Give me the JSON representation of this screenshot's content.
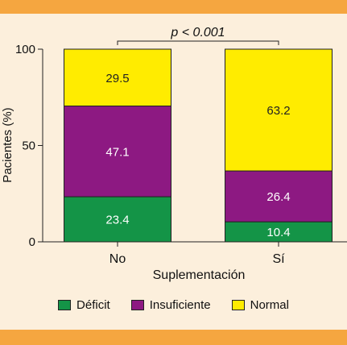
{
  "colors": {
    "background": "#fcefdc",
    "band": "#f5a640",
    "deficit": "#149447",
    "insuficiente": "#8d1982",
    "normal": "#ffec00",
    "axis": "#222222"
  },
  "chart_data": {
    "type": "bar",
    "stacked": true,
    "categories": [
      "No",
      "Sí"
    ],
    "series": [
      {
        "name": "Déficit",
        "values": [
          23.4,
          10.4
        ],
        "labels": [
          "23.4",
          "10.4"
        ],
        "color": "#149447"
      },
      {
        "name": "Insuficiente",
        "values": [
          47.1,
          26.4
        ],
        "labels": [
          "47.1",
          "26.4"
        ],
        "color": "#8d1982"
      },
      {
        "name": "Normal",
        "values": [
          29.5,
          63.2
        ],
        "labels": [
          "29.5",
          "63.2"
        ],
        "color": "#ffec00"
      }
    ],
    "xlabel": "Suplementación",
    "ylabel": "Pacientes (%)",
    "ylim": [
      0,
      100
    ],
    "yticks": [
      0,
      50,
      100
    ],
    "annotation": "p < 0.001",
    "legend_position": "bottom",
    "grid": false
  }
}
